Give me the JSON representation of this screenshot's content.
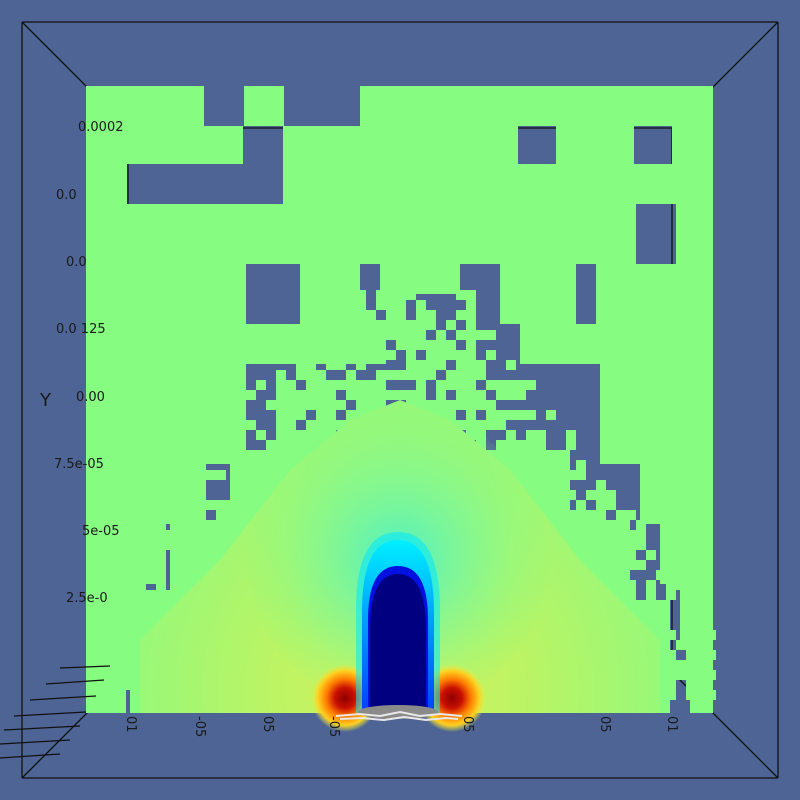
{
  "colors": {
    "background": "#4d6494",
    "cell_fill": "#86fc80",
    "frame_line": "#111111",
    "jet_core": "#000080",
    "hot_spot": "#b20000"
  },
  "icons": [
    "dash-streak-icon"
  ],
  "axis": {
    "y_title": "Y",
    "y_tick_labels": [
      "0.0002",
      "0.0",
      "0.0",
      "0.0 125",
      "0.00",
      "7.5e-05",
      "5e-05",
      "2.5e-0"
    ],
    "x_tick_labels": [
      "01",
      "-05",
      "05",
      "-05",
      "05",
      "05",
      "01"
    ]
  }
}
